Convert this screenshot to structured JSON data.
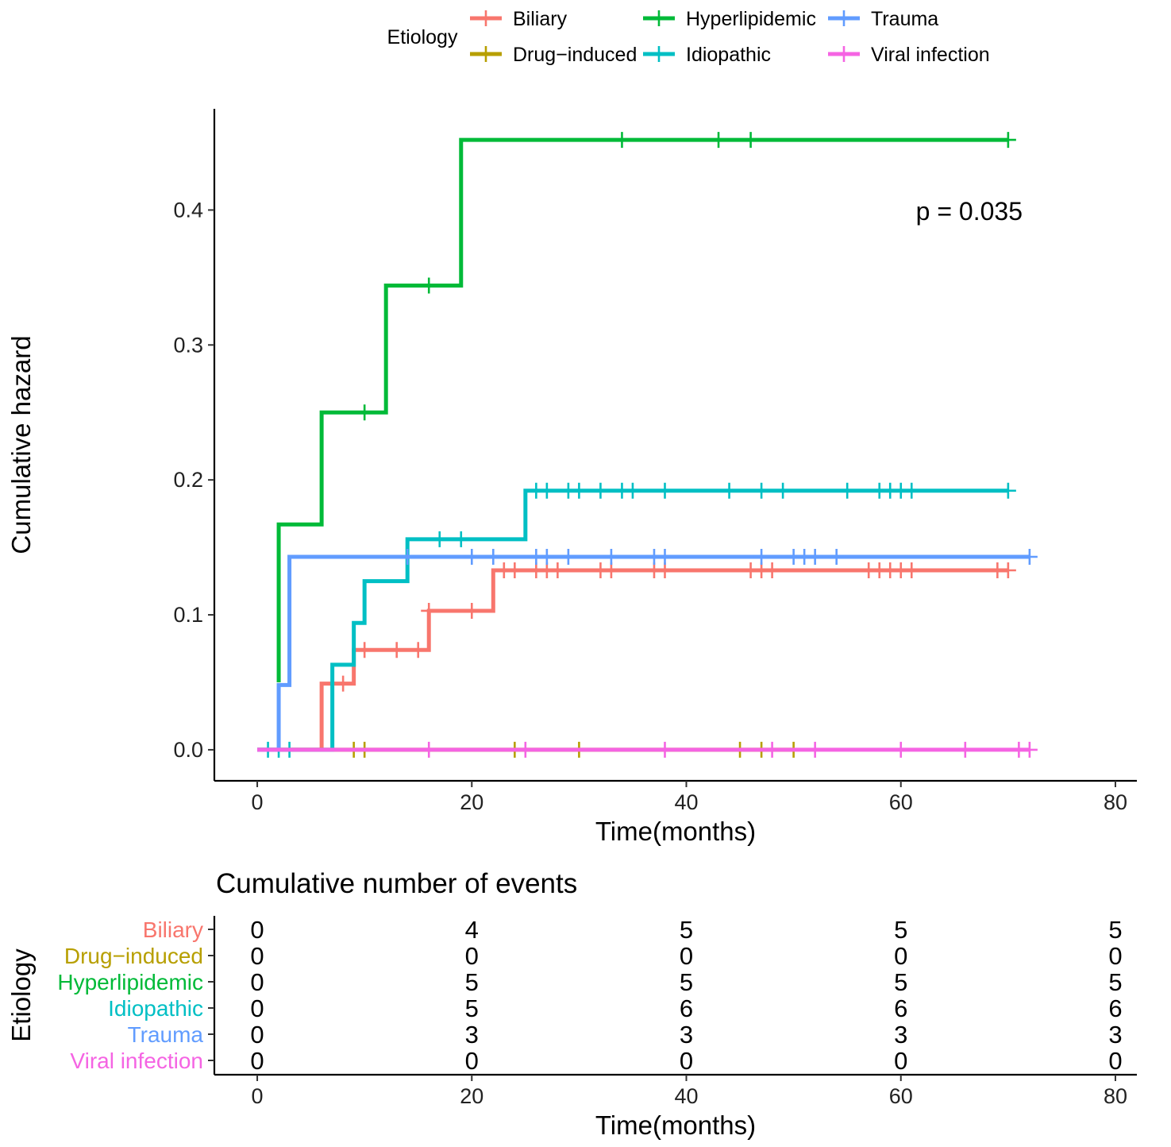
{
  "chart_data": [
    {
      "type": "line",
      "subtype": "step",
      "title": "",
      "xlabel": "Time(months)",
      "ylabel": "Cumulative hazard",
      "xlim": [
        -4,
        82
      ],
      "ylim": [
        -0.023,
        0.475
      ],
      "xticks": [
        0,
        20,
        40,
        60,
        80
      ],
      "yticks": [
        0.0,
        0.1,
        0.2,
        0.3,
        0.4
      ],
      "ytick_labels": [
        "0.0",
        "0.1",
        "0.2",
        "0.3",
        "0.4"
      ],
      "grid": false,
      "annotation": "p = 0.035",
      "legend": {
        "title": "Etiology",
        "position": "top"
      },
      "series": [
        {
          "name": "Biliary",
          "color": "#F8766D",
          "steps": [
            [
              0,
              0
            ],
            [
              6,
              0.049
            ],
            [
              9,
              0.074
            ],
            [
              16,
              0.103
            ],
            [
              22,
              0.133
            ],
            [
              70,
              0.133
            ]
          ],
          "censor": [
            8,
            10,
            13,
            15,
            16,
            20,
            23,
            24,
            26,
            27,
            28,
            32,
            33,
            37,
            38,
            46,
            47,
            48,
            57,
            58,
            59,
            60,
            61,
            69,
            70
          ]
        },
        {
          "name": "Drug−induced",
          "color": "#B79F00",
          "steps": [
            [
              0,
              0
            ],
            [
              50,
              0
            ]
          ],
          "censor": [
            9,
            10,
            24,
            30,
            45,
            47,
            50
          ]
        },
        {
          "name": "Hyperlipidemic",
          "color": "#00BA38",
          "steps": [
            [
              2,
              0.05
            ],
            [
              2,
              0.167
            ],
            [
              6,
              0.25
            ],
            [
              12,
              0.344
            ],
            [
              19,
              0.452
            ],
            [
              70,
              0.452
            ]
          ],
          "censor": [
            10,
            16,
            34,
            43,
            46,
            70
          ]
        },
        {
          "name": "Idiopathic",
          "color": "#00BFC4",
          "steps": [
            [
              0,
              0
            ],
            [
              7,
              0.063
            ],
            [
              9,
              0.094
            ],
            [
              10,
              0.125
            ],
            [
              14,
              0.156
            ],
            [
              25,
              0.192
            ],
            [
              70,
              0.192
            ]
          ],
          "censor": [
            1,
            2,
            3,
            17,
            19,
            26,
            27,
            29,
            30,
            32,
            34,
            35,
            38,
            44,
            47,
            49,
            55,
            58,
            59,
            60,
            61,
            70
          ]
        },
        {
          "name": "Trauma",
          "color": "#619CFF",
          "steps": [
            [
              0,
              0
            ],
            [
              2,
              0.048
            ],
            [
              3,
              0.143
            ],
            [
              72,
              0.143
            ]
          ],
          "censor": [
            14,
            20,
            22,
            26,
            27,
            29,
            33,
            37,
            38,
            47,
            50,
            51,
            52,
            54,
            72
          ]
        },
        {
          "name": "Viral infection",
          "color": "#F564E3",
          "steps": [
            [
              0,
              0
            ],
            [
              72,
              0
            ]
          ],
          "censor": [
            16,
            25,
            38,
            48,
            52,
            60,
            66,
            71,
            72
          ]
        }
      ]
    },
    {
      "type": "table",
      "title": "Cumulative number of events",
      "xlabel": "Time(months)",
      "ylabel": "Etiology",
      "xlim": [
        -4,
        82
      ],
      "columns": [
        0,
        20,
        40,
        60,
        80
      ],
      "rows": [
        {
          "name": "Biliary",
          "color": "#F8766D",
          "values": [
            "0",
            "4",
            "5",
            "5",
            "5"
          ]
        },
        {
          "name": "Drug−induced",
          "color": "#B79F00",
          "values": [
            "0",
            "0",
            "0",
            "0",
            "0"
          ]
        },
        {
          "name": "Hyperlipidemic",
          "color": "#00BA38",
          "values": [
            "0",
            "5",
            "5",
            "5",
            "5"
          ]
        },
        {
          "name": "Idiopathic",
          "color": "#00BFC4",
          "values": [
            "0",
            "5",
            "6",
            "6",
            "6"
          ]
        },
        {
          "name": "Trauma",
          "color": "#619CFF",
          "values": [
            "0",
            "3",
            "3",
            "3",
            "3"
          ]
        },
        {
          "name": "Viral infection",
          "color": "#F564E3",
          "values": [
            "0",
            "0",
            "0",
            "0",
            "0"
          ]
        }
      ]
    }
  ]
}
